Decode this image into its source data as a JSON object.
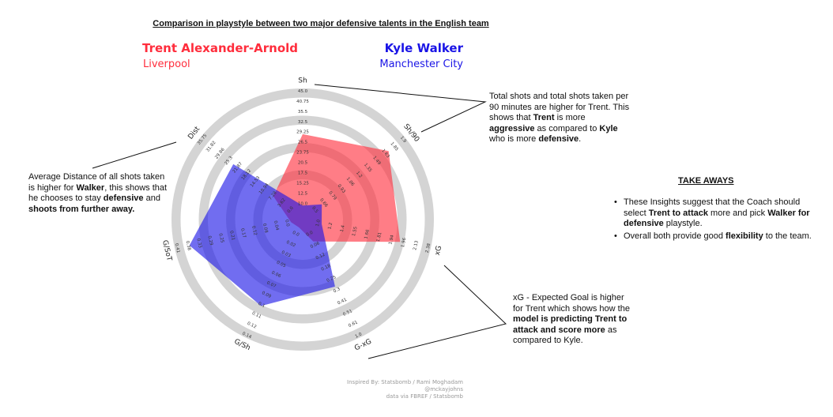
{
  "title": "Comparison in playstyle between two major defensive talents in the English team",
  "players": [
    {
      "name": "Trent Alexander-Arnold",
      "team": "Liverpool",
      "color": "#ff2d3c"
    },
    {
      "name": "Kyle Walker",
      "team": "Manchester City",
      "color": "#1a14e6"
    }
  ],
  "chart_data": {
    "type": "radar",
    "title": "Comparison in playstyle between two major defensive talents in the English team",
    "axes": [
      "Sh",
      "Sh/90",
      "xG",
      "G-xG",
      "G/Sh",
      "G/SoT",
      "Dist"
    ],
    "ranges": [
      [
        10.0,
        45.0
      ],
      [
        0.5,
        2.0
      ],
      [
        1.0,
        2.38
      ],
      [
        0.0,
        1.0
      ],
      [
        0.0,
        0.14
      ],
      [
        0.0,
        0.41
      ],
      [
        0.0,
        35.75
      ]
    ],
    "tick_labels": [
      [
        "10.0",
        "12.5",
        "15.25",
        "17.5",
        "20.5",
        "23.75",
        "26.5",
        "29.25",
        "32.5",
        "35.5",
        "40.75",
        "45.0"
      ],
      [
        "0.5",
        "0.66",
        "0.79",
        "0.93",
        "1.06",
        "1.2",
        "1.35",
        "1.49",
        "1.63",
        "1.85",
        "1.9"
      ],
      [
        "1.0",
        "1.2",
        "1.4",
        "1.55",
        "1.66",
        "1.81",
        "1.94",
        "1.96",
        "2.13",
        "2.38"
      ],
      [
        "0.0",
        "0.06",
        "0.12",
        "0.18",
        "0.25",
        "0.3",
        "0.41",
        "0.51",
        "0.61",
        "1.0"
      ],
      [
        "0.0",
        "0.02",
        "0.03",
        "0.05",
        "0.06",
        "0.07",
        "0.09",
        "0.1",
        "0.11",
        "0.12",
        "0.14"
      ],
      [
        "0.0",
        "0.04",
        "0.08",
        "0.12",
        "0.17",
        "0.21",
        "0.25",
        "0.29",
        "0.33",
        "0.38",
        "0.41"
      ],
      [
        "0.0",
        "3.62",
        "7.28",
        "10.94",
        "14.53",
        "18.12",
        "21.87",
        "25.3",
        "29.86",
        "31.82",
        "35.75"
      ]
    ],
    "series": [
      {
        "name": "Trent Alexander-Arnold",
        "color": "#ff2d3c",
        "values": [
          34.5,
          1.85,
          2.13,
          0.2,
          0.01,
          0.04,
          11.0
        ]
      },
      {
        "name": "Kyle Walker",
        "color": "#1a14e6",
        "values": [
          14.0,
          0.8,
          1.22,
          0.61,
          0.11,
          0.39,
          26.0
        ]
      }
    ]
  },
  "annotations": {
    "sh": {
      "parts": [
        {
          "text": "Total shots and total shots taken per 90 minutes are higher for Trent. This shows that ",
          "bold": false
        },
        {
          "text": "Trent",
          "bold": true
        },
        {
          "text": " is more ",
          "bold": false
        },
        {
          "text": "aggressive",
          "bold": true
        },
        {
          "text": " as compared to ",
          "bold": false
        },
        {
          "text": "Kyle",
          "bold": true
        },
        {
          "text": " who is more ",
          "bold": false
        },
        {
          "text": "defensive",
          "bold": true
        },
        {
          "text": ".",
          "bold": false
        }
      ]
    },
    "dist": {
      "parts": [
        {
          "text": "Average Distance of all shots taken is higher for ",
          "bold": false
        },
        {
          "text": "Walker",
          "bold": true
        },
        {
          "text": ", this shows that he chooses to stay ",
          "bold": false
        },
        {
          "text": "defensive",
          "bold": true
        },
        {
          "text": " and ",
          "bold": false
        },
        {
          "text": "shoots from further away.",
          "bold": true
        }
      ]
    },
    "xg": {
      "parts": [
        {
          "text": "xG - Expected Goal is higher for Trent which shows how the ",
          "bold": false
        },
        {
          "text": "model is predicting Trent to attack and score more",
          "bold": true
        },
        {
          "text": "  as compared to Kyle.",
          "bold": false
        }
      ]
    }
  },
  "takeaways": {
    "title": "TAKE AWAYS",
    "bullet": "•",
    "items": [
      {
        "parts": [
          {
            "text": "These Insights suggest that the Coach should select ",
            "bold": false
          },
          {
            "text": "Trent to attack",
            "bold": true
          },
          {
            "text": " more and pick ",
            "bold": false
          },
          {
            "text": "Walker for defensive",
            "bold": true
          },
          {
            "text": " playstyle.",
            "bold": false
          }
        ]
      },
      {
        "parts": [
          {
            "text": "Overall both provide good ",
            "bold": false
          },
          {
            "text": "flexibility",
            "bold": true
          },
          {
            "text": " to the team.",
            "bold": false
          }
        ]
      }
    ]
  },
  "credits": [
    "Inspired By: Statsbomb / Rami Moghadam",
    "@mckayjohns",
    "data via FBREF / Statsbomb"
  ]
}
